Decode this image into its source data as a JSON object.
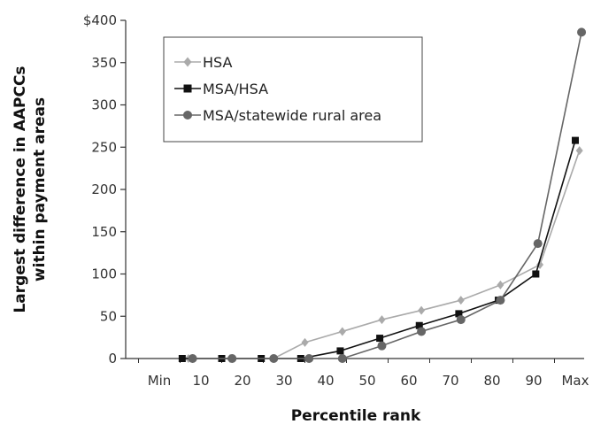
{
  "chart_data": {
    "type": "line",
    "categories": [
      "Min",
      "10",
      "20",
      "30",
      "40",
      "50",
      "60",
      "70",
      "80",
      "90",
      "Max"
    ],
    "xlabel": "Percentile rank",
    "ylabel_lines": [
      "Largest difference in AAPCCs",
      "within payment areas"
    ],
    "ylim": [
      0,
      400
    ],
    "yticks": [
      "0",
      "50",
      "100",
      "150",
      "200",
      "250",
      "300",
      "350",
      "$400"
    ],
    "grid": false,
    "legend_position": "top-left",
    "series": [
      {
        "name": "HSA",
        "marker": "diamond",
        "color": "#aaaaaa",
        "points": [
          {
            "x": 0.7,
            "y": 0
          },
          {
            "x": 1.7,
            "y": 0
          },
          {
            "x": 2.75,
            "y": 0
          },
          {
            "x": 3.5,
            "y": 19
          },
          {
            "x": 4.4,
            "y": 32
          },
          {
            "x": 5.35,
            "y": 46
          },
          {
            "x": 6.3,
            "y": 57
          },
          {
            "x": 7.25,
            "y": 69
          },
          {
            "x": 8.2,
            "y": 87
          },
          {
            "x": 9.15,
            "y": 111
          },
          {
            "x": 10.1,
            "y": 246
          }
        ]
      },
      {
        "name": "MSA/HSA",
        "marker": "square",
        "color": "#111111",
        "points": [
          {
            "x": 0.55,
            "y": 0
          },
          {
            "x": 1.5,
            "y": 0
          },
          {
            "x": 2.45,
            "y": 0
          },
          {
            "x": 3.4,
            "y": 0
          },
          {
            "x": 4.35,
            "y": 9
          },
          {
            "x": 5.3,
            "y": 24
          },
          {
            "x": 6.25,
            "y": 39
          },
          {
            "x": 7.2,
            "y": 53
          },
          {
            "x": 8.15,
            "y": 69
          },
          {
            "x": 9.05,
            "y": 100
          },
          {
            "x": 10.0,
            "y": 258
          }
        ]
      },
      {
        "name": "MSA/statewide rural area",
        "marker": "circle",
        "color": "#666666",
        "points": [
          {
            "x": 0.8,
            "y": 0
          },
          {
            "x": 1.75,
            "y": 0
          },
          {
            "x": 2.75,
            "y": 0
          },
          {
            "x": 3.6,
            "y": 0
          },
          {
            "x": 4.4,
            "y": 0
          },
          {
            "x": 5.35,
            "y": 15
          },
          {
            "x": 6.3,
            "y": 32
          },
          {
            "x": 7.25,
            "y": 46
          },
          {
            "x": 8.2,
            "y": 69
          },
          {
            "x": 9.1,
            "y": 136
          },
          {
            "x": 10.15,
            "y": 386
          }
        ]
      }
    ]
  }
}
